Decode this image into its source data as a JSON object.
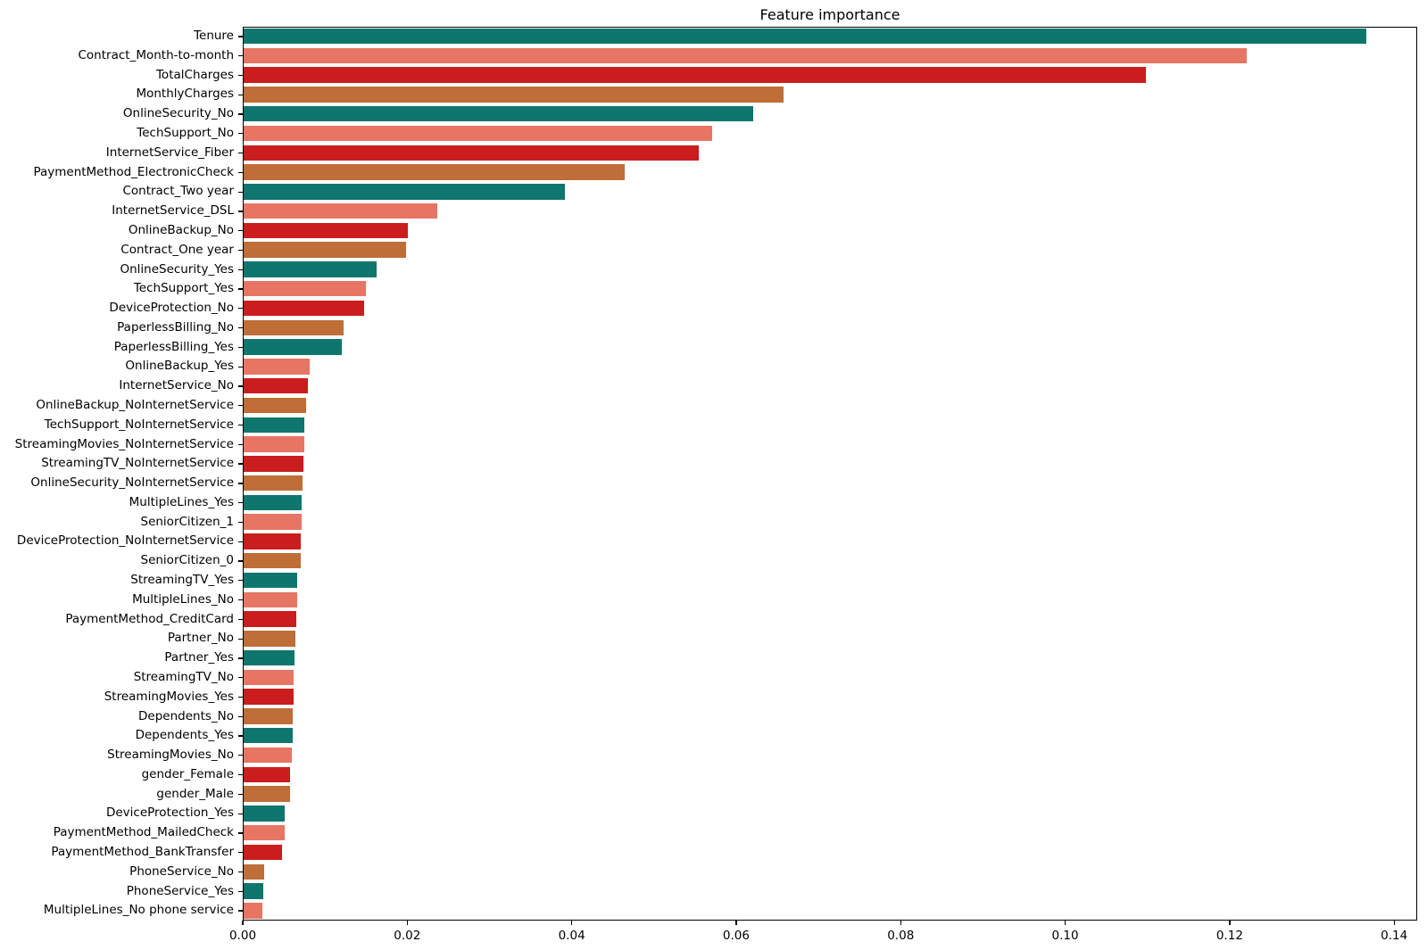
{
  "chart_data": {
    "type": "bar",
    "orientation": "horizontal",
    "title": "Feature importance",
    "xlabel": "",
    "ylabel": "",
    "grid": false,
    "legend": null,
    "xlim": [
      0,
      0.1428
    ],
    "xticks": [
      0.0,
      0.02,
      0.04,
      0.06,
      0.08,
      0.1,
      0.12,
      0.14
    ],
    "xtick_labels": [
      "0.00",
      "0.02",
      "0.04",
      "0.06",
      "0.08",
      "0.10",
      "0.12",
      "0.14"
    ],
    "color_cycle": [
      "#0F766E",
      "#E77564",
      "#CB1D1D",
      "#BE6E36"
    ],
    "categories": [
      "Tenure",
      "Contract_Month-to-month",
      "TotalCharges",
      "MonthlyCharges",
      "OnlineSecurity_No",
      "TechSupport_No",
      "InternetService_Fiber",
      "PaymentMethod_ElectronicCheck",
      "Contract_Two year",
      "InternetService_DSL",
      "OnlineBackup_No",
      "Contract_One year",
      "OnlineSecurity_Yes",
      "TechSupport_Yes",
      "DeviceProtection_No",
      "PaperlessBilling_No",
      "PaperlessBilling_Yes",
      "OnlineBackup_Yes",
      "InternetService_No",
      "OnlineBackup_NoInternetService",
      "TechSupport_NoInternetService",
      "StreamingMovies_NoInternetService",
      "StreamingTV_NoInternetService",
      "OnlineSecurity_NoInternetService",
      "MultipleLines_Yes",
      "SeniorCitizen_1",
      "DeviceProtection_NoInternetService",
      "SeniorCitizen_0",
      "StreamingTV_Yes",
      "MultipleLines_No",
      "PaymentMethod_CreditCard",
      "Partner_No",
      "Partner_Yes",
      "StreamingTV_No",
      "StreamingMovies_Yes",
      "Dependents_No",
      "Dependents_Yes",
      "StreamingMovies_No",
      "gender_Female",
      "gender_Male",
      "DeviceProtection_Yes",
      "PaymentMethod_MailedCheck",
      "PaymentMethod_BankTransfer",
      "PhoneService_No",
      "PhoneService_Yes",
      "MultipleLines_No phone service"
    ],
    "values": [
      0.1365,
      0.122,
      0.1097,
      0.0657,
      0.062,
      0.057,
      0.0553,
      0.0463,
      0.0391,
      0.0236,
      0.02,
      0.0198,
      0.0162,
      0.0149,
      0.0146,
      0.0121,
      0.0119,
      0.008,
      0.0078,
      0.0076,
      0.0074,
      0.0074,
      0.0073,
      0.0072,
      0.0071,
      0.007,
      0.0069,
      0.0069,
      0.0065,
      0.0065,
      0.0064,
      0.0063,
      0.0062,
      0.0061,
      0.0061,
      0.006,
      0.006,
      0.0059,
      0.0056,
      0.0056,
      0.005,
      0.005,
      0.0047,
      0.0025,
      0.0024,
      0.0023
    ]
  }
}
